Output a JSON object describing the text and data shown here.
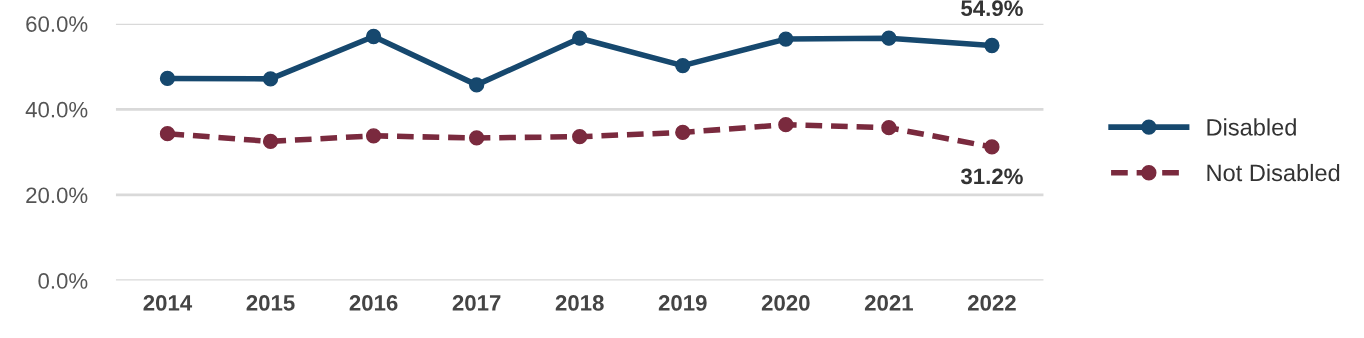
{
  "chart_data": {
    "type": "line",
    "categories": [
      "2014",
      "2015",
      "2016",
      "2017",
      "2018",
      "2019",
      "2020",
      "2021",
      "2022"
    ],
    "series": [
      {
        "name": "Disabled",
        "color": "#16486e",
        "line_style": "solid",
        "values": [
          47.2,
          47.1,
          57.0,
          45.7,
          56.6,
          50.2,
          56.4,
          56.6,
          54.9
        ],
        "value_labels": [
          null,
          null,
          null,
          null,
          null,
          null,
          null,
          null,
          "54.9%"
        ]
      },
      {
        "name": "Not Disabled",
        "color": "#7a2a3e",
        "line_style": "dashed",
        "values": [
          34.3,
          32.5,
          33.8,
          33.3,
          33.6,
          34.6,
          36.4,
          35.7,
          31.2
        ],
        "value_labels": [
          null,
          null,
          null,
          null,
          null,
          null,
          null,
          null,
          "31.2%"
        ]
      }
    ],
    "ylim": [
      0,
      60
    ],
    "yticks": [
      {
        "value": 0,
        "label": "0.0%"
      },
      {
        "value": 20,
        "label": "20.0%"
      },
      {
        "value": 40,
        "label": "40.0%"
      },
      {
        "value": 60,
        "label": "60.0%"
      }
    ],
    "grid": "y",
    "legend": "right",
    "marker": "circle"
  }
}
